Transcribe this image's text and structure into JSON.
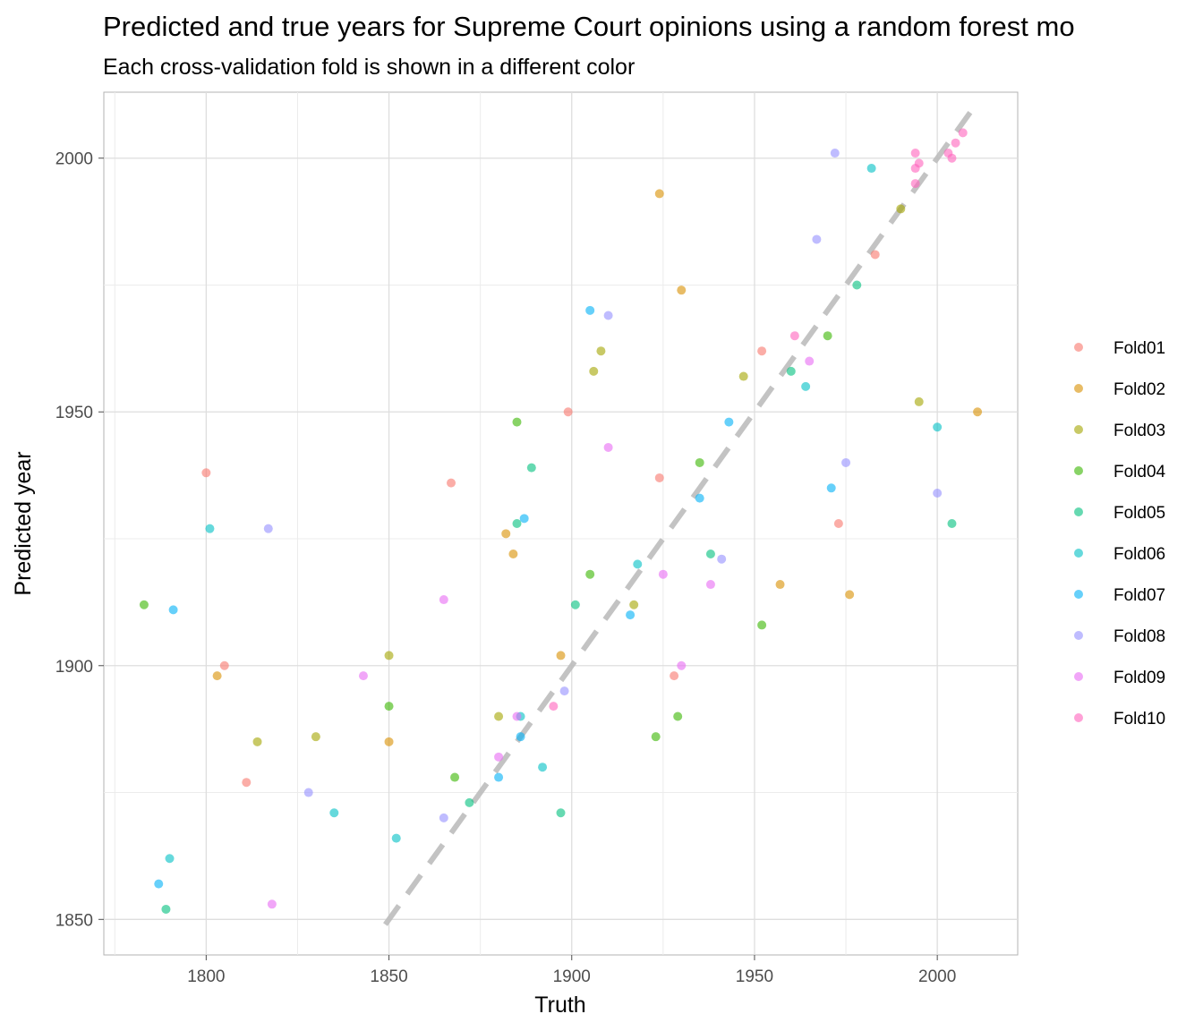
{
  "chart_data": {
    "type": "scatter",
    "title": "Predicted and true years for Supreme Court opinions using a random forest mo",
    "subtitle": "Each cross-validation fold is shown in a different color",
    "xlabel": "Truth",
    "ylabel": "Predicted year",
    "xlim": [
      1772,
      2022
    ],
    "ylim": [
      1843,
      2013
    ],
    "xticks": [
      1800,
      1850,
      1900,
      1950,
      2000
    ],
    "yticks": [
      1850,
      1900,
      1950,
      2000
    ],
    "grid": true,
    "legend_position": "right",
    "reference_line": {
      "style": "dashed",
      "color": "#bdbdbd",
      "from": [
        1849,
        1849
      ],
      "to": [
        2010,
        2010
      ]
    },
    "series": [
      {
        "name": "Fold01",
        "color": "#F8766D",
        "values": [
          [
            1800,
            1938
          ],
          [
            1805,
            1900
          ],
          [
            1899,
            1950
          ],
          [
            1867,
            1936
          ],
          [
            1811,
            1877
          ],
          [
            1928,
            1898
          ],
          [
            1973,
            1928
          ],
          [
            1924,
            1937
          ],
          [
            1952,
            1962
          ],
          [
            1983,
            1981
          ]
        ]
      },
      {
        "name": "Fold02",
        "color": "#D89000",
        "values": [
          [
            1924,
            1993
          ],
          [
            1930,
            1974
          ],
          [
            2011,
            1950
          ],
          [
            1976,
            1914
          ],
          [
            1957,
            1916
          ],
          [
            1882,
            1926
          ],
          [
            1884,
            1922
          ],
          [
            1803,
            1898
          ],
          [
            1850,
            1885
          ],
          [
            1897,
            1902
          ]
        ]
      },
      {
        "name": "Fold03",
        "color": "#A3A500",
        "values": [
          [
            1850,
            1902
          ],
          [
            1906,
            1958
          ],
          [
            1908,
            1962
          ],
          [
            1814,
            1885
          ],
          [
            1830,
            1886
          ],
          [
            1995,
            1952
          ],
          [
            1990,
            1990
          ],
          [
            1947,
            1957
          ],
          [
            1917,
            1912
          ],
          [
            1880,
            1890
          ]
        ]
      },
      {
        "name": "Fold04",
        "color": "#39B600",
        "values": [
          [
            1783,
            1912
          ],
          [
            1885,
            1948
          ],
          [
            1929,
            1890
          ],
          [
            1952,
            1908
          ],
          [
            1923,
            1886
          ],
          [
            1850,
            1892
          ],
          [
            1905,
            1918
          ],
          [
            1970,
            1965
          ],
          [
            1935,
            1940
          ],
          [
            1868,
            1878
          ]
        ]
      },
      {
        "name": "Fold05",
        "color": "#00BF7D",
        "values": [
          [
            1789,
            1852
          ],
          [
            1889,
            1939
          ],
          [
            1885,
            1928
          ],
          [
            2004,
            1928
          ],
          [
            1897,
            1871
          ],
          [
            1960,
            1958
          ],
          [
            1938,
            1922
          ],
          [
            1901,
            1912
          ],
          [
            1978,
            1975
          ],
          [
            1872,
            1873
          ]
        ]
      },
      {
        "name": "Fold06",
        "color": "#00BFC4",
        "values": [
          [
            1801,
            1927
          ],
          [
            1790,
            1862
          ],
          [
            1886,
            1890
          ],
          [
            1982,
            1998
          ],
          [
            2000,
            1947
          ],
          [
            1918,
            1920
          ],
          [
            1964,
            1955
          ],
          [
            1835,
            1871
          ],
          [
            1892,
            1880
          ],
          [
            1852,
            1866
          ]
        ]
      },
      {
        "name": "Fold07",
        "color": "#00B0F6",
        "values": [
          [
            1791,
            1911
          ],
          [
            1905,
            1970
          ],
          [
            1887,
            1929
          ],
          [
            1935,
            1933
          ],
          [
            1886,
            1886
          ],
          [
            1971,
            1935
          ],
          [
            1787,
            1857
          ],
          [
            1916,
            1910
          ],
          [
            1943,
            1948
          ],
          [
            1880,
            1878
          ]
        ]
      },
      {
        "name": "Fold08",
        "color": "#9590FF",
        "values": [
          [
            1817,
            1927
          ],
          [
            1910,
            1969
          ],
          [
            1972,
            2001
          ],
          [
            2000,
            1934
          ],
          [
            1941,
            1921
          ],
          [
            1967,
            1984
          ],
          [
            1975,
            1940
          ],
          [
            1828,
            1875
          ],
          [
            1898,
            1895
          ],
          [
            1865,
            1870
          ]
        ]
      },
      {
        "name": "Fold09",
        "color": "#E76BF3",
        "values": [
          [
            1843,
            1898
          ],
          [
            1865,
            1913
          ],
          [
            1910,
            1943
          ],
          [
            1938,
            1916
          ],
          [
            1930,
            1900
          ],
          [
            1965,
            1960
          ],
          [
            1818,
            1853
          ],
          [
            1880,
            1882
          ],
          [
            1925,
            1918
          ],
          [
            1885,
            1890
          ]
        ]
      },
      {
        "name": "Fold10",
        "color": "#FF62BC",
        "values": [
          [
            1994,
            1998
          ],
          [
            1994,
            2001
          ],
          [
            1994,
            1995
          ],
          [
            1995,
            1999
          ],
          [
            2004,
            2000
          ],
          [
            2005,
            2003
          ],
          [
            2007,
            2005
          ],
          [
            2003,
            2001
          ],
          [
            1961,
            1965
          ],
          [
            1895,
            1892
          ]
        ]
      }
    ]
  }
}
